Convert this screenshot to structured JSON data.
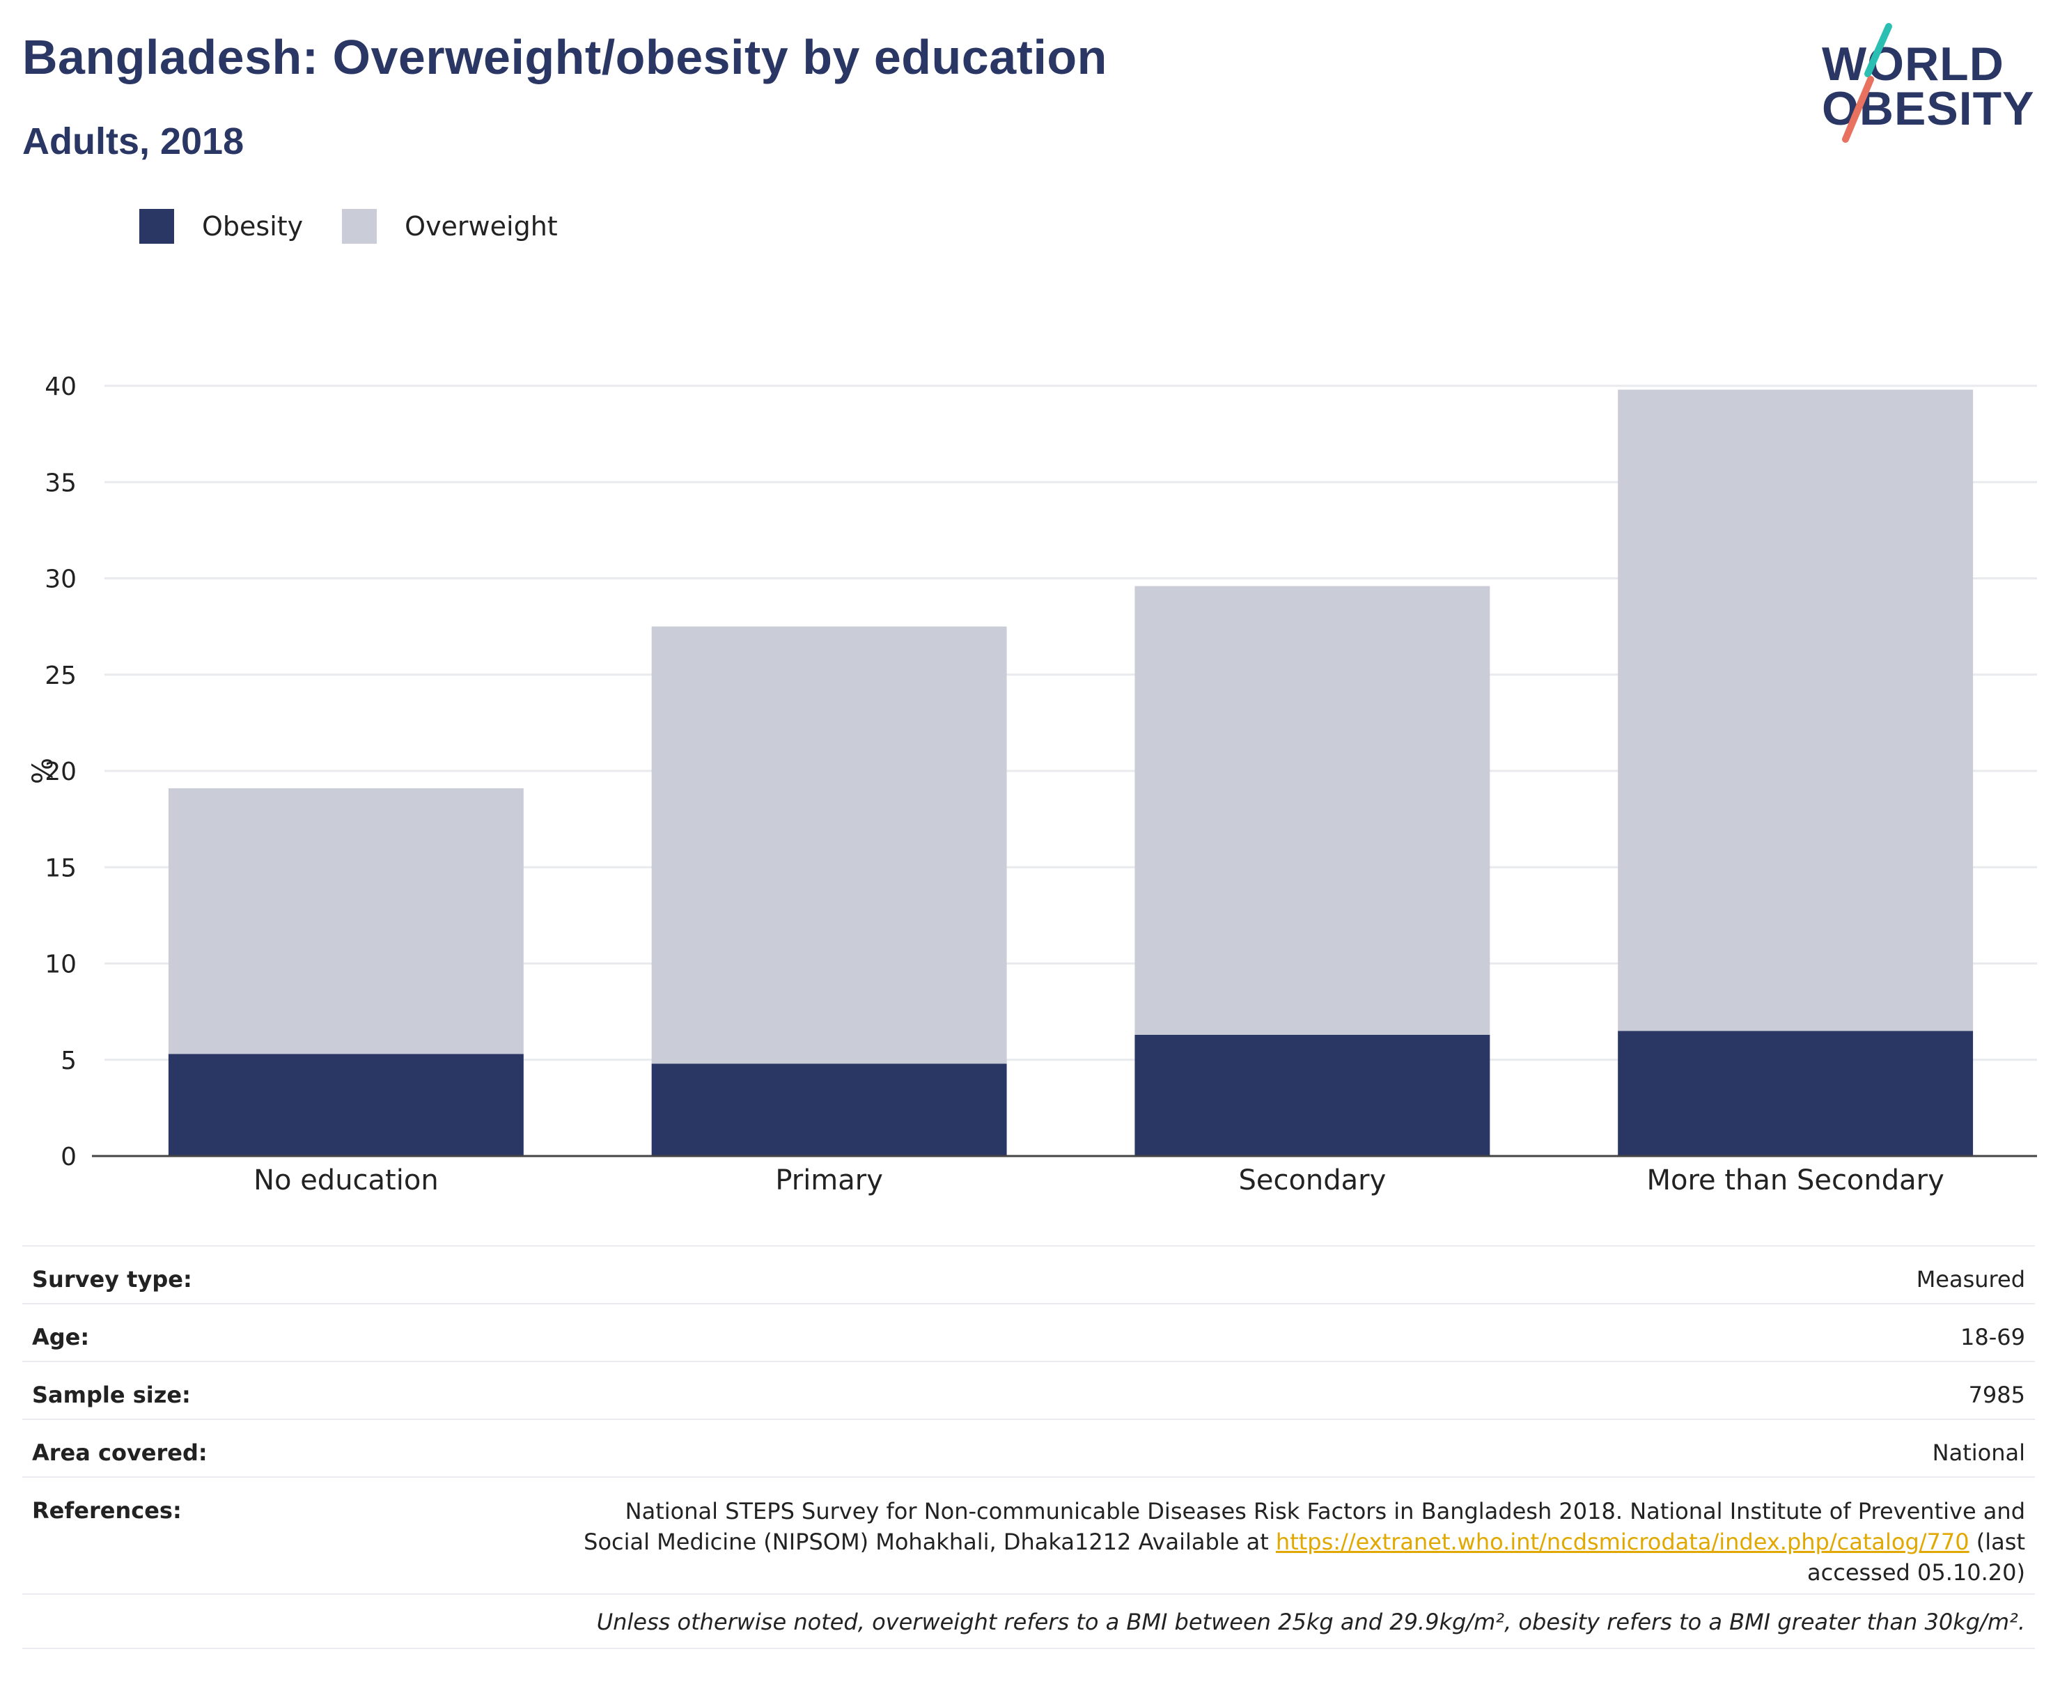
{
  "header": {
    "title": "Bangladesh: Overweight/obesity by education",
    "subtitle": "Adults, 2018"
  },
  "logo": {
    "line1": "WORLD",
    "line2": "OBESITY",
    "colors": {
      "teal": "#2bbfb3",
      "coral": "#e8715f"
    }
  },
  "legend": {
    "items": [
      {
        "label": "Obesity",
        "color": "#2a3664"
      },
      {
        "label": "Overweight",
        "color": "#cacdd8"
      }
    ]
  },
  "chart_data": {
    "type": "bar",
    "stacked": true,
    "categories": [
      "No education",
      "Primary",
      "Secondary",
      "More than Secondary"
    ],
    "series": [
      {
        "name": "Obesity",
        "color": "#2a3664",
        "values": [
          5.3,
          4.8,
          6.3,
          6.5
        ]
      },
      {
        "name": "Overweight",
        "color": "#cacdd8",
        "values": [
          13.8,
          22.7,
          23.3,
          33.3
        ]
      }
    ],
    "ylabel": "%",
    "ylim": [
      0,
      40
    ],
    "yticks": [
      "0",
      "5",
      "10",
      "15",
      "20",
      "25",
      "30",
      "35",
      "40"
    ],
    "grid": true,
    "legend_position": "top-left"
  },
  "info": {
    "rows": [
      {
        "label": "Survey type:",
        "value": "Measured"
      },
      {
        "label": "Age:",
        "value": "18-69"
      },
      {
        "label": "Sample size:",
        "value": "7985"
      },
      {
        "label": "Area covered:",
        "value": "National"
      }
    ],
    "references": {
      "label": "References:",
      "text_before": "National STEPS Survey for Non-communicable Diseases Risk Factors in Bangladesh 2018. National Institute of Preventive and Social Medicine (NIPSOM) Mohakhali, Dhaka1212 Available at ",
      "link": "https://extranet.who.int/ncdsmicrodata/index.php/catalog/770",
      "text_after": " (last accessed 05.10.20)"
    },
    "footnote": "Unless otherwise noted, overweight refers to a BMI between 25kg and 29.9kg/m², obesity refers to a BMI greater than 30kg/m²."
  }
}
